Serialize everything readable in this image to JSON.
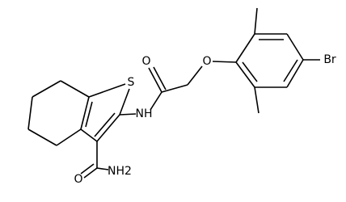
{
  "atoms": [
    {
      "label": "S"
    },
    {
      "label": "NH"
    },
    {
      "label": "O"
    },
    {
      "label": "O"
    },
    {
      "label": "Br"
    },
    {
      "label": "NH2"
    },
    {
      "label": "O"
    }
  ]
}
